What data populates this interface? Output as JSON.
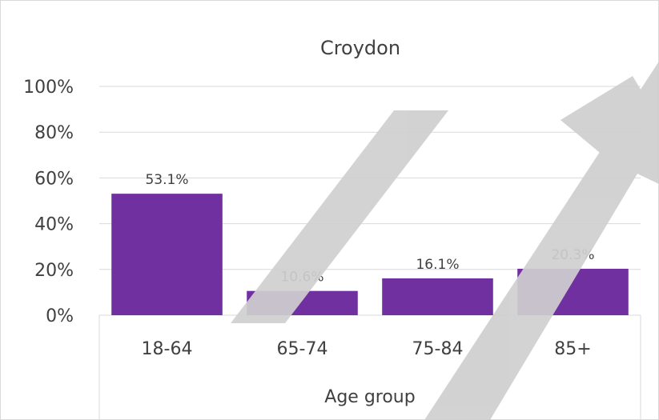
{
  "chart_data": {
    "type": "bar",
    "title": "Croydon",
    "xlabel": "Age group",
    "ylabel": "",
    "categories": [
      "18-64",
      "65-74",
      "75-84",
      "85+"
    ],
    "values": [
      53.1,
      10.6,
      16.1,
      20.3
    ],
    "data_labels": [
      "53.1%",
      "10.6%",
      "16.1%",
      "20.3%"
    ],
    "y_ticks": [
      0,
      20,
      40,
      60,
      80,
      100
    ],
    "y_tick_labels": [
      "0%",
      "20%",
      "40%",
      "60%",
      "80%",
      "100%"
    ],
    "ylim": [
      0,
      100
    ],
    "grid": true,
    "legend": "none",
    "colors": {
      "bar": "#7030a0",
      "grid": "#d9d9d9",
      "text": "#404040",
      "overlay": "#cfcfcf"
    }
  }
}
